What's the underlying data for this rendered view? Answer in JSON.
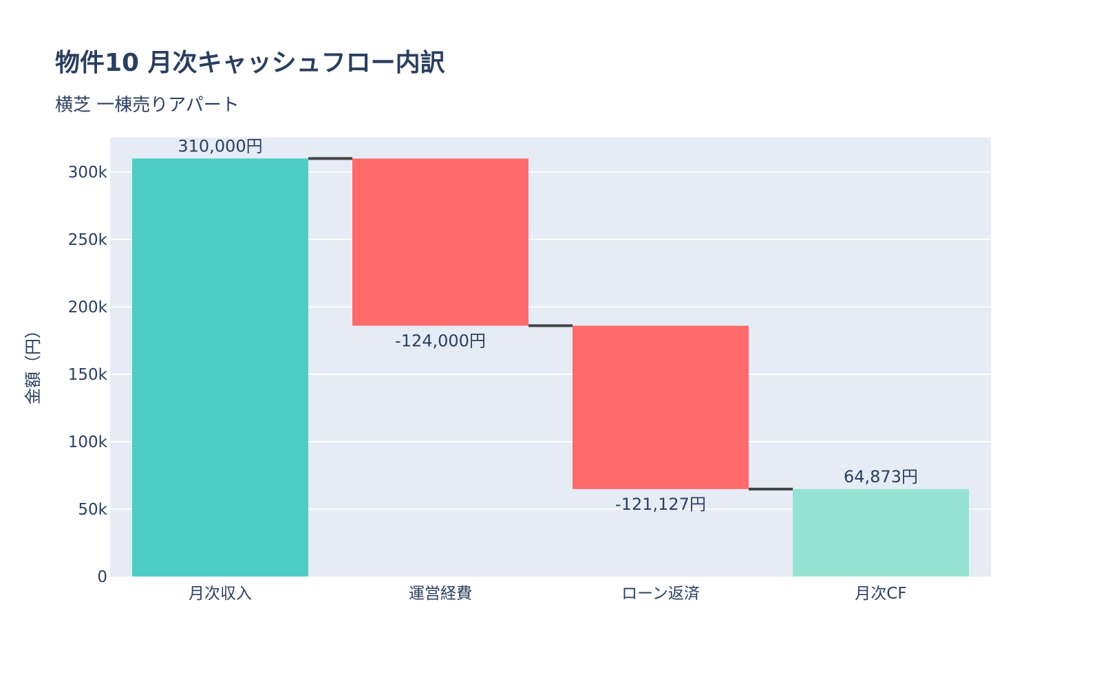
{
  "chart_data": {
    "type": "waterfall",
    "title": "物件10 月次キャッシュフロー内訳",
    "subtitle": "横芝 一棟売りアパート",
    "ylabel": "金額（円）",
    "xlabel": "",
    "categories": [
      "月次収入",
      "運営経費",
      "ローン返済",
      "月次CF"
    ],
    "measures": [
      "absolute",
      "relative",
      "relative",
      "total"
    ],
    "values": [
      310000,
      -124000,
      -121127,
      64873
    ],
    "text_labels": [
      "310,000円",
      "-124,000円",
      "-121,127円",
      "64,873円"
    ],
    "ylim": [
      0,
      325500
    ],
    "yticks": [
      0,
      50000,
      100000,
      150000,
      200000,
      250000,
      300000
    ],
    "ytick_labels": [
      "0",
      "50k",
      "100k",
      "150k",
      "200k",
      "250k",
      "300k"
    ],
    "grid": true,
    "colors": {
      "increasing": "#4ECDC4",
      "decreasing": "#FF6B6B",
      "totals": "#95E1D3",
      "connector": "#444444",
      "plot_bg": "#E5ECF6",
      "grid": "#FFFFFF",
      "text": "#2a3f5f"
    }
  }
}
